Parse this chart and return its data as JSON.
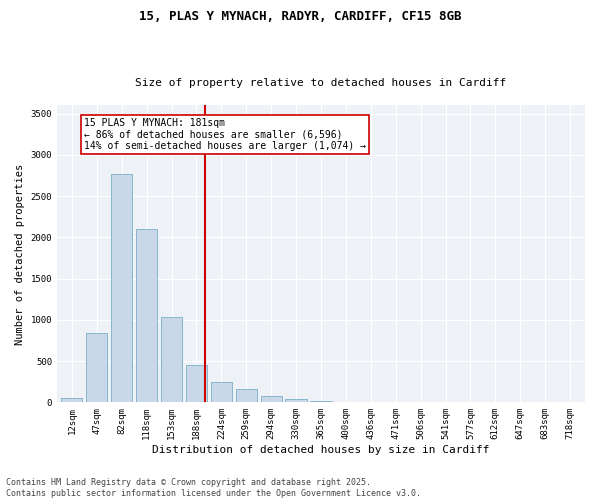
{
  "title_line1": "15, PLAS Y MYNACH, RADYR, CARDIFF, CF15 8GB",
  "title_line2": "Size of property relative to detached houses in Cardiff",
  "xlabel": "Distribution of detached houses by size in Cardiff",
  "ylabel": "Number of detached properties",
  "categories": [
    "12sqm",
    "47sqm",
    "82sqm",
    "118sqm",
    "153sqm",
    "188sqm",
    "224sqm",
    "259sqm",
    "294sqm",
    "330sqm",
    "365sqm",
    "400sqm",
    "436sqm",
    "471sqm",
    "506sqm",
    "541sqm",
    "577sqm",
    "612sqm",
    "647sqm",
    "683sqm",
    "718sqm"
  ],
  "values": [
    55,
    840,
    2770,
    2100,
    1040,
    455,
    250,
    160,
    75,
    45,
    20,
    10,
    5,
    3,
    2,
    1,
    0,
    0,
    0,
    0,
    0
  ],
  "bar_color": "#c8d8e8",
  "bar_edge_color": "#7aafc8",
  "vline_color": "#cc0000",
  "annotation_box_text": "15 PLAS Y MYNACH: 181sqm\n← 86% of detached houses are smaller (6,596)\n14% of semi-detached houses are larger (1,074) →",
  "ylim": [
    0,
    3600
  ],
  "yticks": [
    0,
    500,
    1000,
    1500,
    2000,
    2500,
    3000,
    3500
  ],
  "bg_color": "#eef2f7",
  "footer_line1": "Contains HM Land Registry data © Crown copyright and database right 2025.",
  "footer_line2": "Contains public sector information licensed under the Open Government Licence v3.0.",
  "title_fontsize": 9,
  "subtitle_fontsize": 8,
  "tick_fontsize": 6.5,
  "ylabel_fontsize": 7.5,
  "xlabel_fontsize": 8,
  "annot_fontsize": 7,
  "footer_fontsize": 6
}
